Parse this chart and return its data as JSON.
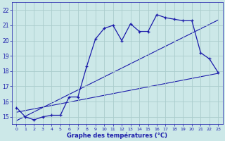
{
  "title": "Graphe des températures (°C)",
  "bg_color": "#cce8e8",
  "grid_color": "#aacccc",
  "line_color": "#1a1aaa",
  "x_labels": [
    "0",
    "1",
    "2",
    "3",
    "4",
    "5",
    "6",
    "7",
    "8",
    "9",
    "10",
    "11",
    "12",
    "13",
    "14",
    "15",
    "16",
    "17",
    "18",
    "19",
    "20",
    "21",
    "22",
    "23"
  ],
  "y_ticks": [
    15,
    16,
    17,
    18,
    19,
    20,
    21,
    22
  ],
  "ylim": [
    14.5,
    22.5
  ],
  "xlim": [
    -0.5,
    23.5
  ],
  "hourly_temps": [
    15.6,
    15.0,
    14.8,
    15.0,
    15.1,
    15.1,
    16.3,
    16.3,
    18.3,
    20.1,
    20.8,
    21.0,
    20.0,
    21.1,
    20.6,
    20.6,
    21.7,
    21.5,
    21.4,
    21.3,
    21.3,
    19.2,
    18.8,
    17.9
  ],
  "line1_x": [
    0,
    23
  ],
  "line1_y": [
    15.3,
    17.85
  ],
  "line2_x": [
    0,
    23
  ],
  "line2_y": [
    14.75,
    21.35
  ]
}
